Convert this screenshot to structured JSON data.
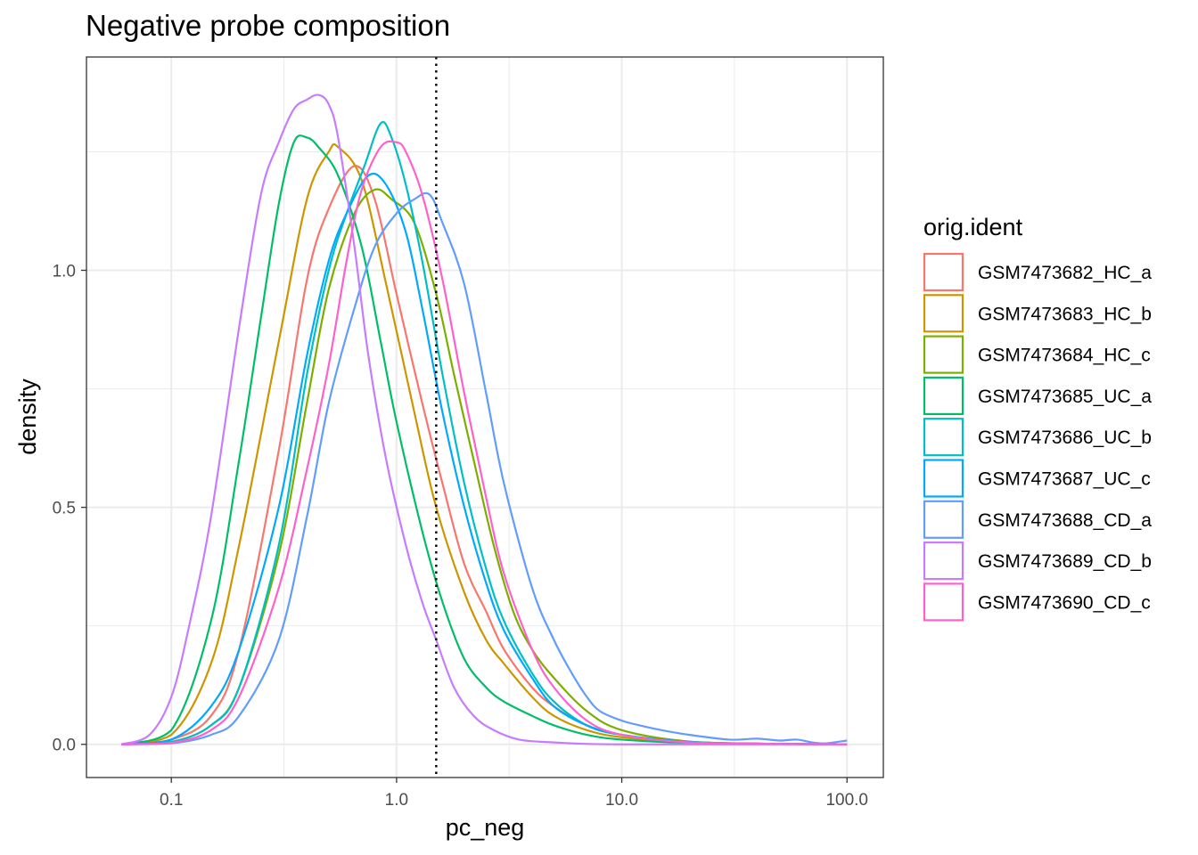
{
  "chart_data": {
    "type": "line",
    "title": "Negative probe composition",
    "xlabel": "pc_neg",
    "ylabel": "density",
    "x_scale": "log10",
    "xlim": [
      0.042,
      145
    ],
    "ylim": [
      -0.07,
      1.45
    ],
    "x_ticks": [
      {
        "value": 0.1,
        "label": "0.1"
      },
      {
        "value": 1,
        "label": "1.0"
      },
      {
        "value": 10,
        "label": "10.0"
      },
      {
        "value": 100,
        "label": "100.0"
      }
    ],
    "y_ticks": [
      {
        "value": 0,
        "label": "0.0"
      },
      {
        "value": 0.5,
        "label": "0.5"
      },
      {
        "value": 1,
        "label": "1.0"
      }
    ],
    "grid": true,
    "threshold_line": {
      "x": 1.5,
      "style": "dotted"
    },
    "legend": {
      "title": "orig.ident",
      "position": "right"
    },
    "series": [
      {
        "name": "GSM7473682_HC_a",
        "color": "#F8766D",
        "x": [
          0.06,
          0.1,
          0.15,
          0.2,
          0.3,
          0.4,
          0.5,
          0.65,
          0.8,
          1.0,
          1.3,
          1.6,
          2.0,
          2.5,
          3.0,
          4.0,
          5.0,
          7.0,
          10,
          20,
          50,
          100
        ],
        "y": [
          0,
          0.01,
          0.06,
          0.2,
          0.62,
          0.98,
          1.13,
          1.22,
          1.15,
          0.95,
          0.72,
          0.55,
          0.38,
          0.28,
          0.2,
          0.12,
          0.08,
          0.04,
          0.02,
          0.005,
          0.001,
          0
        ]
      },
      {
        "name": "GSM7473683_HC_b",
        "color": "#CD9600",
        "x": [
          0.06,
          0.1,
          0.15,
          0.2,
          0.3,
          0.4,
          0.5,
          0.55,
          0.7,
          0.9,
          1.2,
          1.5,
          2.0,
          2.5,
          3.0,
          4.0,
          5.0,
          7.0,
          10,
          20,
          50,
          100
        ],
        "y": [
          0,
          0.02,
          0.17,
          0.42,
          0.85,
          1.15,
          1.25,
          1.26,
          1.19,
          0.97,
          0.7,
          0.5,
          0.32,
          0.22,
          0.17,
          0.1,
          0.06,
          0.03,
          0.015,
          0.004,
          0.001,
          0
        ]
      },
      {
        "name": "GSM7473684_HC_c",
        "color": "#7CAE00",
        "x": [
          0.06,
          0.1,
          0.15,
          0.2,
          0.3,
          0.4,
          0.5,
          0.65,
          0.8,
          0.95,
          1.2,
          1.5,
          1.8,
          2.2,
          2.7,
          3.3,
          4.0,
          5.0,
          7.0,
          10,
          20,
          50,
          100
        ],
        "y": [
          0,
          0.005,
          0.04,
          0.12,
          0.4,
          0.72,
          0.96,
          1.12,
          1.17,
          1.15,
          1.1,
          0.95,
          0.78,
          0.6,
          0.42,
          0.28,
          0.2,
          0.14,
          0.07,
          0.03,
          0.006,
          0.001,
          0
        ]
      },
      {
        "name": "GSM7473685_UC_a",
        "color": "#00BE67",
        "x": [
          0.06,
          0.1,
          0.15,
          0.2,
          0.25,
          0.3,
          0.35,
          0.4,
          0.45,
          0.55,
          0.7,
          0.85,
          1.0,
          1.3,
          1.6,
          2.0,
          2.5,
          3.0,
          4.0,
          5.0,
          7.0,
          10,
          20,
          50,
          100
        ],
        "y": [
          0,
          0.03,
          0.26,
          0.6,
          0.9,
          1.14,
          1.27,
          1.28,
          1.26,
          1.2,
          1.05,
          0.85,
          0.68,
          0.45,
          0.3,
          0.18,
          0.12,
          0.09,
          0.06,
          0.04,
          0.02,
          0.01,
          0.003,
          0.001,
          0
        ]
      },
      {
        "name": "GSM7473686_UC_b",
        "color": "#00BFC4",
        "x": [
          0.06,
          0.1,
          0.15,
          0.2,
          0.3,
          0.4,
          0.5,
          0.6,
          0.72,
          0.85,
          0.95,
          1.1,
          1.3,
          1.6,
          2.0,
          2.5,
          3.0,
          4.0,
          5.0,
          7.0,
          10,
          20,
          50,
          100
        ],
        "y": [
          0,
          0.005,
          0.04,
          0.12,
          0.42,
          0.78,
          1.0,
          1.12,
          1.22,
          1.31,
          1.28,
          1.18,
          1.02,
          0.78,
          0.55,
          0.37,
          0.26,
          0.15,
          0.09,
          0.04,
          0.02,
          0.005,
          0.001,
          0
        ]
      },
      {
        "name": "GSM7473687_UC_c",
        "color": "#00A9FF",
        "x": [
          0.06,
          0.1,
          0.15,
          0.2,
          0.3,
          0.4,
          0.5,
          0.6,
          0.75,
          0.9,
          1.1,
          1.3,
          1.6,
          2.0,
          2.5,
          3.0,
          4.0,
          5.0,
          7.0,
          10,
          20,
          50,
          100
        ],
        "y": [
          0,
          0.01,
          0.08,
          0.2,
          0.5,
          0.82,
          1.02,
          1.12,
          1.2,
          1.18,
          1.08,
          0.92,
          0.7,
          0.5,
          0.34,
          0.24,
          0.14,
          0.08,
          0.04,
          0.02,
          0.005,
          0.001,
          0
        ]
      },
      {
        "name": "GSM7473688_CD_a",
        "color": "#619CFF",
        "x": [
          0.06,
          0.1,
          0.15,
          0.2,
          0.3,
          0.4,
          0.5,
          0.65,
          0.8,
          1.0,
          1.2,
          1.4,
          1.6,
          2.0,
          2.5,
          3.0,
          4.0,
          5.0,
          6.0,
          7.0,
          8.0,
          10,
          12,
          15,
          20,
          30,
          40,
          50,
          60,
          70,
          80,
          100
        ],
        "y": [
          0,
          0.002,
          0.02,
          0.06,
          0.22,
          0.48,
          0.72,
          0.92,
          1.05,
          1.12,
          1.15,
          1.16,
          1.1,
          0.97,
          0.74,
          0.55,
          0.33,
          0.22,
          0.15,
          0.1,
          0.07,
          0.05,
          0.04,
          0.03,
          0.02,
          0.01,
          0.012,
          0.008,
          0.01,
          0.004,
          0.002,
          0.008
        ]
      },
      {
        "name": "GSM7473689_CD_b",
        "color": "#C77CFF",
        "x": [
          0.06,
          0.08,
          0.1,
          0.12,
          0.15,
          0.2,
          0.25,
          0.3,
          0.35,
          0.4,
          0.45,
          0.5,
          0.55,
          0.65,
          0.75,
          0.9,
          1.1,
          1.3,
          1.5,
          1.8,
          2.2,
          2.7,
          3.5,
          5.0,
          7.0,
          10,
          20,
          100
        ],
        "y": [
          0,
          0.02,
          0.1,
          0.25,
          0.48,
          0.88,
          1.16,
          1.27,
          1.34,
          1.36,
          1.37,
          1.35,
          1.28,
          1.05,
          0.82,
          0.6,
          0.42,
          0.3,
          0.22,
          0.12,
          0.06,
          0.03,
          0.01,
          0.004,
          0.001,
          0,
          0,
          0
        ]
      },
      {
        "name": "GSM7473690_CD_c",
        "color": "#FF61CC",
        "x": [
          0.06,
          0.1,
          0.15,
          0.2,
          0.3,
          0.4,
          0.5,
          0.6,
          0.7,
          0.85,
          1.0,
          1.1,
          1.3,
          1.6,
          2.0,
          2.5,
          3.0,
          4.0,
          5.0,
          7.0,
          10,
          20,
          50,
          100
        ],
        "y": [
          0,
          0.003,
          0.03,
          0.1,
          0.33,
          0.58,
          0.8,
          1.02,
          1.17,
          1.26,
          1.27,
          1.25,
          1.16,
          0.98,
          0.74,
          0.52,
          0.36,
          0.2,
          0.12,
          0.05,
          0.02,
          0.004,
          0.001,
          0
        ]
      }
    ]
  }
}
